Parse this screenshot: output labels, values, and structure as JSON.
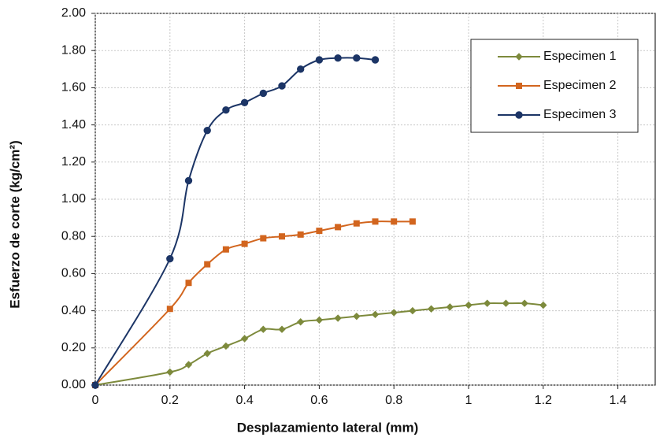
{
  "chart_data": {
    "type": "line",
    "x_label": "Desplazamiento lateral (mm)",
    "y_label": "Esfuerzo de corte (kg/cm²)",
    "xlim": [
      0,
      1.5
    ],
    "xticks": [
      0,
      0.2,
      0.4,
      0.6,
      0.8,
      1,
      1.2,
      1.4
    ],
    "ylim": [
      0,
      2
    ],
    "yticks": [
      {
        "value": 0,
        "label": "0.00"
      },
      {
        "value": 0.2,
        "label": "0.20"
      },
      {
        "value": 0.4,
        "label": "0.40"
      },
      {
        "value": 0.6,
        "label": "0.60"
      },
      {
        "value": 0.8,
        "label": "0.80"
      },
      {
        "value": 1,
        "label": "1.00"
      },
      {
        "value": 1.2,
        "label": "1.20"
      },
      {
        "value": 1.4,
        "label": "1.40"
      },
      {
        "value": 1.6,
        "label": "1.60"
      },
      {
        "value": 1.8,
        "label": "1.80"
      },
      {
        "value": 2,
        "label": "2.00"
      }
    ],
    "grid": true,
    "legend": "top-right",
    "series": [
      {
        "name": "Especimen 1",
        "color": "#7d8a3c",
        "marker": "diamond",
        "x": [
          0,
          0.2,
          0.25,
          0.3,
          0.35,
          0.4,
          0.45,
          0.5,
          0.55,
          0.6,
          0.65,
          0.7,
          0.75,
          0.8,
          0.85,
          0.9,
          0.95,
          1.0,
          1.05,
          1.1,
          1.15,
          1.2
        ],
        "values": [
          0,
          0.07,
          0.11,
          0.17,
          0.21,
          0.25,
          0.3,
          0.3,
          0.34,
          0.35,
          0.36,
          0.37,
          0.38,
          0.39,
          0.4,
          0.41,
          0.42,
          0.43,
          0.44,
          0.44,
          0.44,
          0.43
        ]
      },
      {
        "name": "Especimen 2",
        "color": "#d2651e",
        "marker": "square",
        "x": [
          0,
          0.2,
          0.25,
          0.3,
          0.35,
          0.4,
          0.45,
          0.5,
          0.55,
          0.6,
          0.65,
          0.7,
          0.75,
          0.8,
          0.85
        ],
        "values": [
          0,
          0.41,
          0.55,
          0.65,
          0.73,
          0.76,
          0.79,
          0.8,
          0.81,
          0.83,
          0.85,
          0.87,
          0.88,
          0.88,
          0.88
        ]
      },
      {
        "name": "Especimen 3",
        "color": "#1c3566",
        "marker": "circle",
        "x": [
          0,
          0.2,
          0.25,
          0.3,
          0.35,
          0.4,
          0.45,
          0.5,
          0.55,
          0.6,
          0.65,
          0.7,
          0.75
        ],
        "values": [
          0,
          0.68,
          1.1,
          1.37,
          1.48,
          1.52,
          1.57,
          1.61,
          1.7,
          1.75,
          1.76,
          1.76,
          1.75
        ]
      }
    ]
  }
}
